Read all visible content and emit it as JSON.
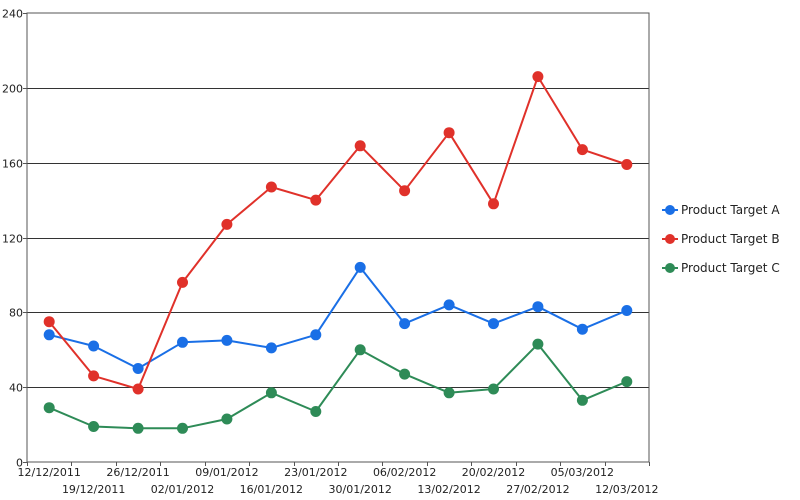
{
  "chart_data": {
    "type": "line",
    "x": [
      "12/12/2011",
      "19/12/2011",
      "26/12/2011",
      "02/01/2012",
      "09/01/2012",
      "16/01/2012",
      "23/01/2012",
      "30/01/2012",
      "06/02/2012",
      "13/02/2012",
      "20/02/2012",
      "27/02/2012",
      "05/03/2012",
      "12/03/2012"
    ],
    "ylim": [
      0,
      240
    ],
    "yticks": [
      0,
      40,
      80,
      120,
      160,
      200,
      240
    ],
    "grid": true,
    "legend_position": "right",
    "series": [
      {
        "name": "Product Target A",
        "color": "#1a6fe6",
        "values": [
          68,
          62,
          50,
          64,
          65,
          61,
          68,
          104,
          74,
          84,
          74,
          83,
          71,
          81
        ]
      },
      {
        "name": "Product Target B",
        "color": "#e0312a",
        "values": [
          75,
          46,
          39,
          96,
          127,
          147,
          140,
          169,
          145,
          176,
          138,
          206,
          167,
          159
        ]
      },
      {
        "name": "Product Target C",
        "color": "#2e8b57",
        "values": [
          29,
          19,
          18,
          18,
          23,
          37,
          27,
          60,
          47,
          37,
          39,
          63,
          33,
          43
        ]
      }
    ]
  }
}
